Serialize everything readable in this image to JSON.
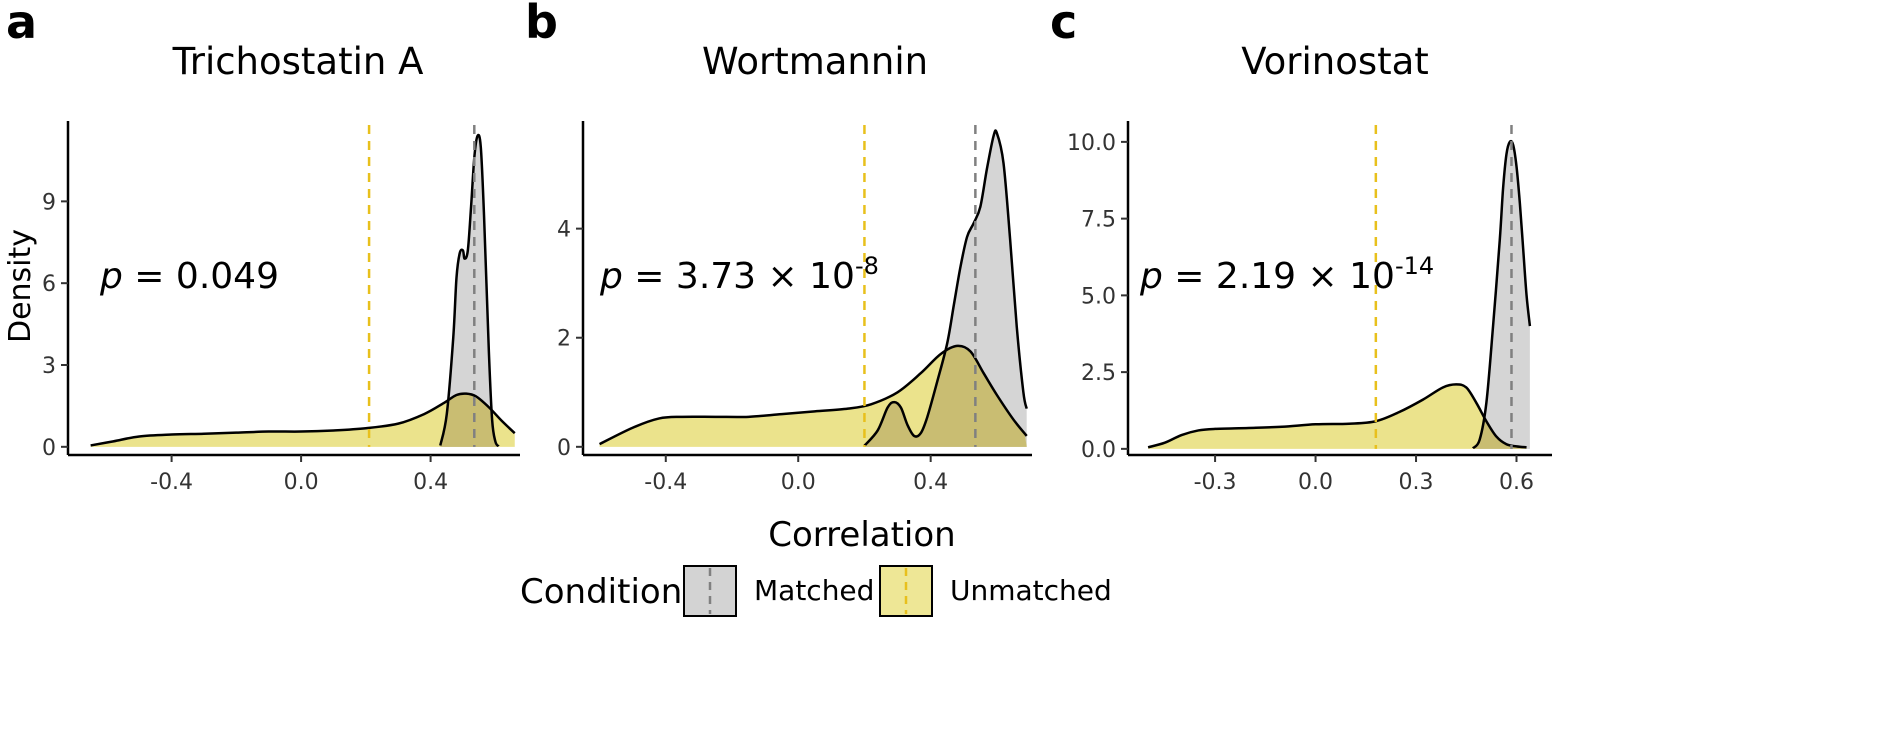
{
  "figure": {
    "y_axis_label": "Density",
    "x_axis_label": "Correlation",
    "legend": {
      "title": "Condition",
      "items": [
        {
          "label": "Matched",
          "fill": "#d3d3d3",
          "line": "#808080"
        },
        {
          "label": "Unmatched",
          "fill": "#eee796",
          "line": "#e8c01c"
        }
      ]
    },
    "colors": {
      "matched_fill": "#d3d3d3",
      "unmatched_fill": "#ebe38c",
      "overlap_fill": "#c9bd72",
      "matched_median": "#808080",
      "unmatched_median": "#e8c01c"
    }
  },
  "chart_data": [
    {
      "type": "area",
      "letter": "a",
      "title": "Trichostatin A",
      "pvalue": {
        "prefix": "p",
        "text": " = 0.049",
        "exp": ""
      },
      "xlim": [
        -0.72,
        0.67
      ],
      "ylim": [
        -0.3,
        11.8
      ],
      "xticks": [
        -0.4,
        0.0,
        0.4
      ],
      "xtick_labels": [
        "-0.4",
        "0.0",
        "0.4"
      ],
      "yticks": [
        0,
        3,
        6,
        9
      ],
      "ytick_labels": [
        "0",
        "3",
        "6",
        "9"
      ],
      "median_matched": 0.535,
      "median_unmatched": 0.21,
      "series": [
        {
          "name": "Unmatched",
          "x": [
            -0.65,
            -0.58,
            -0.5,
            -0.4,
            -0.3,
            -0.2,
            -0.1,
            0.0,
            0.1,
            0.2,
            0.3,
            0.38,
            0.44,
            0.48,
            0.51,
            0.54,
            0.58,
            0.62,
            0.66
          ],
          "values": [
            0.05,
            0.2,
            0.38,
            0.45,
            0.48,
            0.52,
            0.56,
            0.56,
            0.6,
            0.68,
            0.85,
            1.2,
            1.6,
            1.9,
            1.95,
            1.85,
            1.45,
            0.95,
            0.5
          ]
        },
        {
          "name": "Matched",
          "x": [
            0.43,
            0.45,
            0.47,
            0.48,
            0.49,
            0.5,
            0.505,
            0.515,
            0.525,
            0.535,
            0.545,
            0.555,
            0.565,
            0.58,
            0.59,
            0.6,
            0.61
          ],
          "values": [
            0.05,
            1.2,
            4.0,
            6.2,
            7.1,
            7.2,
            6.9,
            7.2,
            8.8,
            10.6,
            11.4,
            11.0,
            8.5,
            3.5,
            1.0,
            0.2,
            0.02
          ]
        }
      ]
    },
    {
      "type": "area",
      "letter": "b",
      "title": "Wortmannin",
      "pvalue": {
        "prefix": "p",
        "text": " = 3.73 × 10",
        "exp": "-8"
      },
      "xlim": [
        -0.65,
        0.7
      ],
      "ylim": [
        -0.15,
        5.9
      ],
      "xticks": [
        -0.4,
        0.0,
        0.4
      ],
      "xtick_labels": [
        "-0.4",
        "0.0",
        "0.4"
      ],
      "yticks": [
        0,
        2,
        4
      ],
      "ytick_labels": [
        "0",
        "2",
        "4"
      ],
      "median_matched": 0.535,
      "median_unmatched": 0.2,
      "series": [
        {
          "name": "Unmatched",
          "x": [
            -0.6,
            -0.5,
            -0.42,
            -0.35,
            -0.25,
            -0.15,
            -0.05,
            0.05,
            0.15,
            0.22,
            0.3,
            0.37,
            0.43,
            0.48,
            0.52,
            0.56,
            0.6,
            0.65,
            0.69
          ],
          "values": [
            0.05,
            0.35,
            0.52,
            0.55,
            0.55,
            0.55,
            0.6,
            0.65,
            0.7,
            0.78,
            1.0,
            1.35,
            1.7,
            1.85,
            1.75,
            1.35,
            0.95,
            0.5,
            0.2
          ]
        },
        {
          "name": "Matched",
          "x": [
            0.2,
            0.24,
            0.27,
            0.29,
            0.31,
            0.33,
            0.35,
            0.37,
            0.39,
            0.42,
            0.45,
            0.47,
            0.49,
            0.51,
            0.53,
            0.55,
            0.57,
            0.59,
            0.6,
            0.62,
            0.64,
            0.66,
            0.68,
            0.69
          ],
          "values": [
            0.02,
            0.3,
            0.72,
            0.82,
            0.72,
            0.4,
            0.2,
            0.25,
            0.55,
            1.2,
            1.9,
            2.6,
            3.3,
            3.85,
            4.1,
            4.4,
            5.1,
            5.7,
            5.75,
            5.2,
            3.8,
            2.2,
            1.0,
            0.7
          ]
        }
      ]
    },
    {
      "type": "area",
      "letter": "c",
      "title": "Vorinostat",
      "pvalue": {
        "prefix": "p",
        "text": " = 2.19 × 10",
        "exp": "-14"
      },
      "xlim": [
        -0.56,
        0.7
      ],
      "ylim": [
        -0.2,
        10.55
      ],
      "xticks": [
        -0.3,
        0.0,
        0.3,
        0.6
      ],
      "xtick_labels": [
        "-0.3",
        "0.0",
        "0.3",
        "0.6"
      ],
      "yticks": [
        0.0,
        2.5,
        5.0,
        7.5,
        10.0
      ],
      "ytick_labels": [
        "0.0",
        "2.5",
        "5.0",
        "7.5",
        "10.0"
      ],
      "median_matched": 0.585,
      "median_unmatched": 0.18,
      "series": [
        {
          "name": "Unmatched",
          "x": [
            -0.5,
            -0.45,
            -0.4,
            -0.35,
            -0.3,
            -0.2,
            -0.1,
            0.0,
            0.1,
            0.18,
            0.25,
            0.32,
            0.38,
            0.42,
            0.45,
            0.48,
            0.51,
            0.54,
            0.57,
            0.6,
            0.63
          ],
          "values": [
            0.05,
            0.2,
            0.45,
            0.6,
            0.65,
            0.68,
            0.72,
            0.8,
            0.82,
            0.9,
            1.2,
            1.6,
            2.0,
            2.1,
            2.0,
            1.5,
            0.9,
            0.4,
            0.15,
            0.08,
            0.05
          ]
        },
        {
          "name": "Matched",
          "x": [
            0.47,
            0.49,
            0.51,
            0.53,
            0.55,
            0.56,
            0.57,
            0.58,
            0.59,
            0.6,
            0.61,
            0.62,
            0.63,
            0.64
          ],
          "values": [
            0.02,
            0.3,
            1.5,
            4.0,
            6.8,
            8.5,
            9.6,
            10.0,
            9.9,
            9.2,
            8.0,
            6.5,
            5.0,
            4.0
          ]
        }
      ]
    }
  ]
}
